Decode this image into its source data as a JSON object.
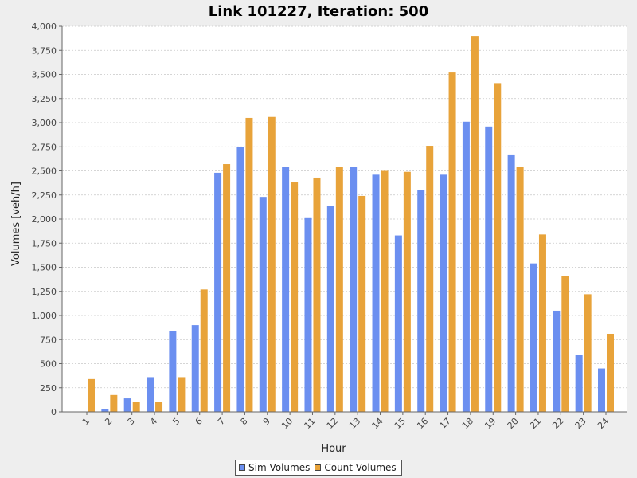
{
  "colors": {
    "sim": "#6b8ff0",
    "count": "#e8a33a",
    "grid": "#c8c8c8",
    "plot_bg": "#ffffff",
    "page_bg": "#eeeeee"
  },
  "chart_data": {
    "type": "bar",
    "title": "Link 101227, Iteration: 500",
    "xlabel": "Hour",
    "ylabel": "Volumes [veh/h]",
    "ylim": [
      0,
      4000
    ],
    "y_ticks": [
      0,
      250,
      500,
      750,
      1000,
      1250,
      1500,
      1750,
      2000,
      2250,
      2500,
      2750,
      3000,
      3250,
      3500,
      3750,
      4000
    ],
    "y_tick_labels": [
      "0",
      "250",
      "500",
      "750",
      "1,000",
      "1,250",
      "1,500",
      "1,750",
      "2,000",
      "2,250",
      "2,500",
      "2,750",
      "3,000",
      "3,250",
      "3,500",
      "3,750",
      "4,000"
    ],
    "grid": true,
    "legend_position": "bottom",
    "categories": [
      "1",
      "2",
      "3",
      "4",
      "5",
      "6",
      "7",
      "8",
      "9",
      "10",
      "11",
      "12",
      "13",
      "14",
      "15",
      "16",
      "17",
      "18",
      "19",
      "20",
      "21",
      "22",
      "23",
      "24"
    ],
    "series": [
      {
        "name": "Sim Volumes",
        "values": [
          0,
          30,
          140,
          360,
          840,
          900,
          2480,
          2750,
          2230,
          2540,
          2010,
          2140,
          2540,
          2460,
          1830,
          2300,
          2460,
          3010,
          2960,
          2670,
          1540,
          1050,
          590,
          450
        ]
      },
      {
        "name": "Count Volumes",
        "values": [
          340,
          175,
          105,
          100,
          360,
          1270,
          2570,
          3050,
          3060,
          2380,
          2430,
          2540,
          2240,
          2500,
          2490,
          2760,
          3520,
          3900,
          3410,
          2540,
          1840,
          1410,
          1220,
          810
        ]
      }
    ]
  }
}
